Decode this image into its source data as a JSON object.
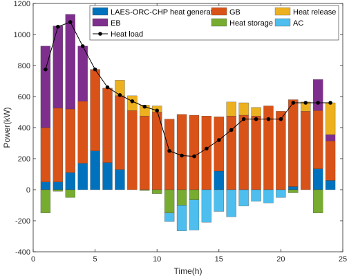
{
  "chart_data": {
    "type": "bar",
    "xlabel": "Time(h)",
    "ylabel": "Power(kW)",
    "xlim": [
      0,
      25
    ],
    "ylim": [
      -400,
      1200
    ],
    "xticks": [
      0,
      5,
      10,
      15,
      20,
      25
    ],
    "yticks": [
      -400,
      -200,
      0,
      200,
      400,
      600,
      800,
      1000,
      1200
    ],
    "grid": false,
    "legend_position": "top",
    "categories": [
      1,
      2,
      3,
      4,
      5,
      6,
      7,
      8,
      9,
      10,
      11,
      12,
      13,
      14,
      15,
      16,
      17,
      18,
      19,
      20,
      21,
      22,
      23,
      24
    ],
    "stacked_positive_order": [
      "LAES-ORC-CHP heat generation",
      "GB",
      "EB",
      "Heat release"
    ],
    "stacked_negative_order": [
      "Heat storage",
      "AC"
    ],
    "series": [
      {
        "name": "LAES-ORC-CHP heat generation",
        "color": "#0072BD",
        "values": [
          50,
          50,
          110,
          170,
          250,
          175,
          130,
          0,
          0,
          0,
          0,
          0,
          0,
          0,
          120,
          0,
          0,
          0,
          0,
          0,
          20,
          0,
          135,
          60
        ]
      },
      {
        "name": "GB",
        "color": "#D95319",
        "values": [
          350,
          475,
          410,
          400,
          525,
          480,
          475,
          510,
          475,
          500,
          455,
          485,
          480,
          475,
          350,
          475,
          480,
          475,
          540,
          505,
          560,
          505,
          375,
          255
        ]
      },
      {
        "name": "Heat release",
        "color": "#EDB120",
        "values": [
          0,
          0,
          0,
          0,
          0,
          0,
          100,
          95,
          70,
          40,
          0,
          0,
          0,
          0,
          0,
          90,
          80,
          55,
          0,
          0,
          0,
          60,
          0,
          205
        ]
      },
      {
        "name": "EB",
        "color": "#7E2F8E",
        "values": [
          525,
          530,
          610,
          355,
          0,
          0,
          0,
          0,
          0,
          0,
          0,
          0,
          0,
          0,
          0,
          0,
          0,
          0,
          0,
          0,
          0,
          0,
          200,
          40
        ]
      },
      {
        "name": "Heat storage",
        "color": "#77AC30",
        "values": [
          -150,
          -10,
          -50,
          0,
          0,
          0,
          0,
          0,
          -5,
          -25,
          -150,
          -100,
          -65,
          0,
          0,
          0,
          0,
          0,
          0,
          0,
          -20,
          0,
          -150,
          0
        ]
      },
      {
        "name": "AC",
        "color": "#4DBEEE",
        "values": [
          0,
          0,
          0,
          0,
          0,
          0,
          0,
          0,
          0,
          0,
          -55,
          -165,
          -195,
          -210,
          -140,
          -175,
          -105,
          -75,
          -85,
          -50,
          0,
          0,
          0,
          0
        ]
      }
    ],
    "line_series": {
      "name": "Heat load",
      "color": "#000000",
      "marker": "circle",
      "values": [
        775,
        1050,
        1080,
        925,
        775,
        660,
        610,
        570,
        535,
        510,
        250,
        220,
        215,
        265,
        320,
        385,
        455,
        455,
        455,
        455,
        560,
        560,
        560,
        560
      ]
    }
  },
  "legend": [
    {
      "label": "LAES-ORC-CHP heat generation",
      "kind": "patch",
      "color": "#0072BD"
    },
    {
      "label": "GB",
      "kind": "patch",
      "color": "#D95319"
    },
    {
      "label": "Heat release",
      "kind": "patch",
      "color": "#EDB120"
    },
    {
      "label": "EB",
      "kind": "patch",
      "color": "#7E2F8E"
    },
    {
      "label": "Heat storage",
      "kind": "patch",
      "color": "#77AC30"
    },
    {
      "label": "AC",
      "kind": "patch",
      "color": "#4DBEEE"
    },
    {
      "label": "Heat load",
      "kind": "line",
      "color": "#000000"
    }
  ]
}
